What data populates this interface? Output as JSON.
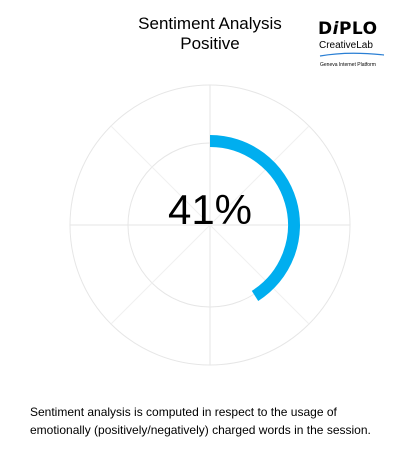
{
  "header": {
    "title": "Sentiment Analysis",
    "subtitle": "Positive"
  },
  "logo": {
    "name": "DiPLO",
    "sub": "CreativeLab",
    "tagline": "Geneva Internet Platform"
  },
  "chart_data": {
    "type": "radial-gauge",
    "title": "Sentiment Analysis",
    "subtitle": "Positive",
    "value": 41,
    "max": 100,
    "display": "41%",
    "arc_color": "#00aeef",
    "grid_color": "#e6e6e6",
    "grid": true
  },
  "footnote": "Sentiment analysis is computed in respect to the usage of emotionally (positively/negatively) charged words in the session."
}
